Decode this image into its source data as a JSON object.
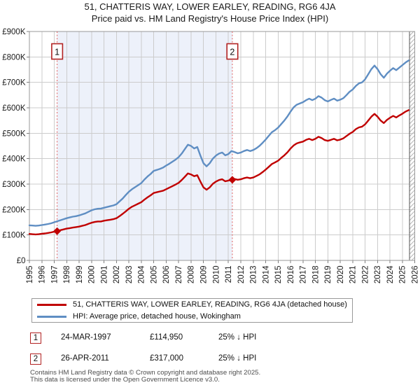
{
  "header": {
    "title": "51, CHATTERIS WAY, LOWER EARLEY, READING, RG6 4JA",
    "subtitle": "Price paid vs. HM Land Registry's House Price Index (HPI)"
  },
  "legend": {
    "items": [
      {
        "label": "51, CHATTERIS WAY, LOWER EARLEY, READING, RG6 4JA (detached house)",
        "color": "#c00000"
      },
      {
        "label": "HPI: Average price, detached house, Wokingham",
        "color": "#5f8ec3"
      }
    ]
  },
  "transactions": [
    {
      "num": "1",
      "date": "24-MAR-1997",
      "price": "£114,950",
      "vs_hpi": "25% ↓ HPI"
    },
    {
      "num": "2",
      "date": "26-APR-2011",
      "price": "£317,000",
      "vs_hpi": "25% ↓ HPI"
    }
  ],
  "footer": {
    "line1": "Contains HM Land Registry data © Crown copyright and database right 2025.",
    "line2": "This data is licensed under the Open Government Licence v3.0."
  },
  "chart_data": {
    "type": "line",
    "title": "51, CHATTERIS WAY, LOWER EARLEY, READING, RG6 4JA — Price paid vs. HM Land Registry's House Price Index (HPI)",
    "x_axis": {
      "start_year": 1995,
      "end_year": 2026,
      "tick_years": [
        1995,
        1996,
        1997,
        1998,
        1999,
        2000,
        2001,
        2002,
        2003,
        2004,
        2005,
        2006,
        2007,
        2008,
        2009,
        2010,
        2011,
        2012,
        2013,
        2014,
        2015,
        2016,
        2017,
        2018,
        2019,
        2020,
        2021,
        2022,
        2023,
        2024,
        2025,
        2026
      ]
    },
    "y_axis": {
      "unit": "GBP",
      "ylim_gbp": [
        0,
        900000
      ],
      "tick_step_gbp": 100000,
      "tick_values_k": [
        0,
        100,
        200,
        300,
        400,
        500,
        600,
        700,
        800,
        900
      ],
      "tick_labels": [
        "£0",
        "£100K",
        "£200K",
        "£300K",
        "£400K",
        "£500K",
        "£600K",
        "£700K",
        "£800K",
        "£900K"
      ]
    },
    "grid": true,
    "series_x": {
      "start_year": 1995.0,
      "step_years": 0.25
    },
    "series": [
      {
        "name": "51, CHATTERIS WAY, LOWER EARLEY, READING, RG6 4JA (detached house)",
        "color": "#c00000",
        "values_gbp_k": [
          104,
          103,
          102,
          103,
          105,
          106,
          108,
          110,
          113,
          115,
          119,
          122,
          125,
          127,
          129,
          131,
          133,
          136,
          139,
          144,
          148,
          151,
          153,
          153,
          156,
          158,
          160,
          162,
          166,
          174,
          183,
          193,
          203,
          211,
          217,
          223,
          229,
          239,
          248,
          256,
          265,
          268,
          271,
          274,
          280,
          286,
          292,
          298,
          305,
          316,
          329,
          342,
          338,
          331,
          335,
          310,
          287,
          278,
          287,
          301,
          310,
          316,
          319,
          311,
          314,
          317,
          320,
          317,
          319,
          323,
          326,
          323,
          326,
          332,
          338,
          347,
          357,
          368,
          379,
          385,
          392,
          403,
          413,
          425,
          440,
          452,
          460,
          464,
          467,
          474,
          478,
          473,
          478,
          486,
          481,
          473,
          470,
          474,
          478,
          472,
          475,
          480,
          489,
          498,
          505,
          516,
          523,
          526,
          535,
          550,
          565,
          576,
          565,
          550,
          540,
          552,
          561,
          568,
          562,
          570,
          577,
          585,
          591
        ]
      },
      {
        "name": "HPI: Average price, detached house, Wokingham",
        "color": "#5f8ec3",
        "values_gbp_k": [
          138,
          137,
          136,
          137,
          139,
          141,
          143,
          146,
          150,
          154,
          158,
          162,
          166,
          169,
          172,
          174,
          177,
          181,
          185,
          191,
          197,
          201,
          203,
          204,
          207,
          210,
          213,
          216,
          221,
          232,
          243,
          257,
          270,
          280,
          288,
          296,
          304,
          318,
          330,
          340,
          352,
          356,
          360,
          365,
          373,
          380,
          388,
          396,
          406,
          420,
          438,
          455,
          450,
          440,
          446,
          412,
          382,
          370,
          382,
          400,
          412,
          420,
          424,
          413,
          418,
          430,
          426,
          421,
          424,
          430,
          434,
          430,
          434,
          441,
          450,
          462,
          475,
          490,
          504,
          512,
          522,
          536,
          550,
          566,
          585,
          602,
          612,
          617,
          622,
          630,
          636,
          630,
          636,
          646,
          640,
          630,
          625,
          631,
          636,
          628,
          632,
          638,
          650,
          663,
          672,
          686,
          696,
          700,
          712,
          732,
          752,
          766,
          752,
          732,
          718,
          734,
          746,
          756,
          748,
          758,
          768,
          778,
          786
        ]
      }
    ],
    "sales": [
      {
        "num": "1",
        "date": "24-MAR-1997",
        "x_year": 1997.23,
        "price_gbp": 114950,
        "note": "25% below HPI"
      },
      {
        "num": "2",
        "date": "26-APR-2011",
        "x_year": 2011.32,
        "price_gbp": 317000,
        "note": "25% below HPI"
      }
    ],
    "shaded_region": {
      "from_year": 1997.23,
      "to_year": 2011.32,
      "color": "#edf1fa"
    },
    "hatch_region": {
      "from_year": 2025.57,
      "to_year": 2026
    },
    "colors": {
      "grid": "#cccccc",
      "border": "#999999",
      "sale_dash": "#e06060",
      "marker_box_border": "#b22222",
      "hatch_line": "#b5b5b5",
      "data_end_line": "#555555",
      "tick": "#808080",
      "text": "#1a1a1a"
    },
    "legend_position": "bottom"
  }
}
